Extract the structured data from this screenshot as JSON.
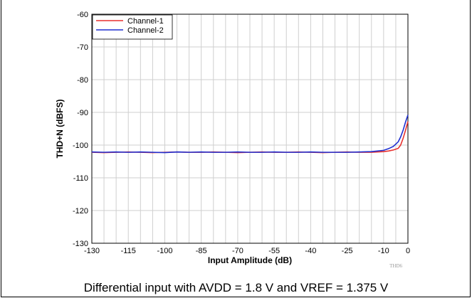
{
  "caption": "Differential input with AVDD = 1.8 V and VREF = 1.375 V",
  "chart_data": {
    "type": "line",
    "xlabel": "Input Amplitude (dB)",
    "ylabel": "THD+N (dBFS)",
    "xlim": [
      -130,
      0
    ],
    "ylim": [
      -130,
      -60
    ],
    "x_ticks": [
      -130,
      -115,
      -100,
      -85,
      -70,
      -55,
      -40,
      -25,
      -10,
      0
    ],
    "y_ticks": [
      -60,
      -70,
      -80,
      -90,
      -100,
      -110,
      -120,
      -130
    ],
    "grid": true,
    "legend_position": "top-left",
    "figure_id": "THD6",
    "series": [
      {
        "name": "Channel-1",
        "color": "#e8312f",
        "x": [
          -130,
          -125,
          -120,
          -115,
          -110,
          -105,
          -100,
          -95,
          -90,
          -85,
          -80,
          -75,
          -70,
          -65,
          -60,
          -55,
          -50,
          -45,
          -40,
          -35,
          -30,
          -25,
          -20,
          -15,
          -10,
          -8,
          -6,
          -4,
          -3,
          -2,
          -1,
          0
        ],
        "y": [
          -102.2,
          -102.3,
          -102.2,
          -102.1,
          -102.2,
          -102.3,
          -102.2,
          -102.1,
          -102.2,
          -102.2,
          -102.1,
          -102.2,
          -102.3,
          -102.2,
          -102.1,
          -102.2,
          -102.2,
          -102.1,
          -102.2,
          -102.3,
          -102.2,
          -102.1,
          -102.2,
          -102.2,
          -102.0,
          -101.8,
          -101.5,
          -101.0,
          -100.0,
          -98.0,
          -95.5,
          -92.8
        ]
      },
      {
        "name": "Channel-2",
        "color": "#1f2fd0",
        "x": [
          -130,
          -125,
          -120,
          -115,
          -110,
          -105,
          -100,
          -95,
          -90,
          -85,
          -80,
          -75,
          -70,
          -65,
          -60,
          -55,
          -50,
          -45,
          -40,
          -35,
          -30,
          -25,
          -20,
          -15,
          -10,
          -8,
          -6,
          -4,
          -3,
          -2,
          -1,
          0
        ],
        "y": [
          -102.1,
          -102.2,
          -102.1,
          -102.2,
          -102.1,
          -102.2,
          -102.3,
          -102.1,
          -102.2,
          -102.1,
          -102.2,
          -102.2,
          -102.1,
          -102.2,
          -102.2,
          -102.1,
          -102.2,
          -102.2,
          -102.1,
          -102.2,
          -102.2,
          -102.2,
          -102.1,
          -102.0,
          -101.6,
          -101.1,
          -100.4,
          -99.0,
          -97.5,
          -95.5,
          -93.0,
          -90.8
        ]
      }
    ]
  }
}
